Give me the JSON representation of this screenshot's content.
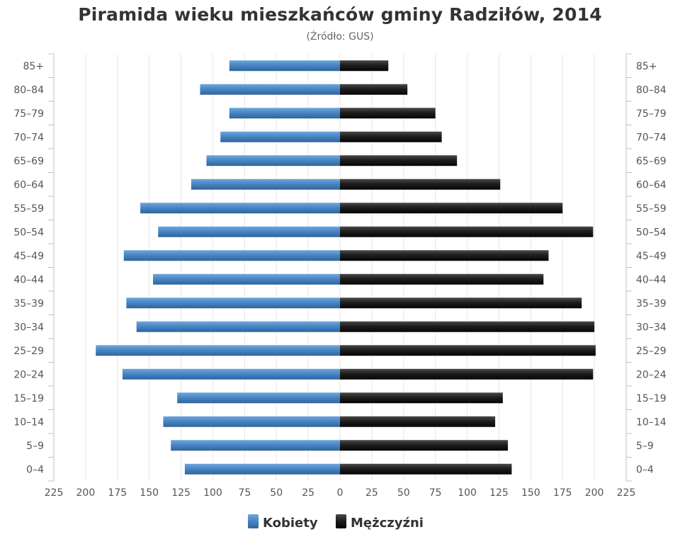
{
  "chart_data": {
    "type": "bar",
    "title": "Piramida wieku mieszkańców gminy Radziłów, 2014",
    "subtitle": "(Źródło: GUS)",
    "categories": [
      "0–4",
      "5–9",
      "10–14",
      "15–19",
      "20–24",
      "25–29",
      "30–34",
      "35–39",
      "40–44",
      "45–49",
      "50–54",
      "55–59",
      "60–64",
      "65–69",
      "70–74",
      "75–79",
      "80–84",
      "85+"
    ],
    "series": [
      {
        "name": "Kobiety",
        "color": "#4a86c5",
        "values": [
          122,
          133,
          139,
          128,
          171,
          192,
          160,
          168,
          147,
          170,
          143,
          157,
          117,
          105,
          94,
          87,
          110,
          87
        ]
      },
      {
        "name": "Mężczyźni",
        "color": "#1a1a1a",
        "values": [
          135,
          132,
          122,
          128,
          199,
          201,
          200,
          190,
          160,
          164,
          199,
          175,
          126,
          92,
          80,
          75,
          53,
          38
        ]
      }
    ],
    "xlim": [
      -225,
      225
    ],
    "xticks": [
      "225",
      "200",
      "175",
      "150",
      "125",
      "100",
      "75",
      "50",
      "25",
      "0",
      "25",
      "50",
      "75",
      "100",
      "125",
      "150",
      "175",
      "200",
      "225"
    ],
    "grid": true,
    "legend": "bottom-center"
  }
}
